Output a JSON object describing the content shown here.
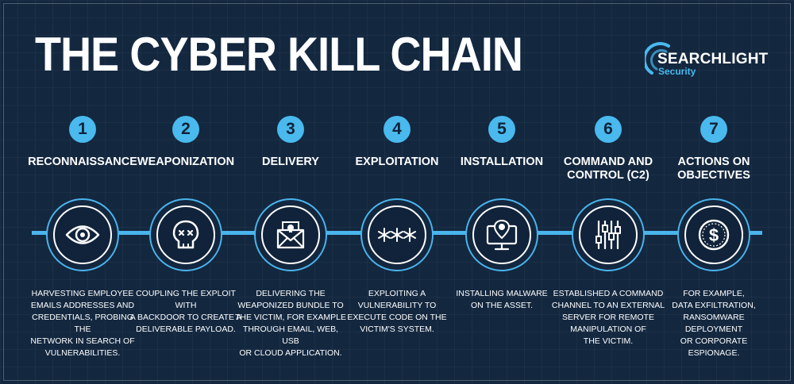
{
  "title": "THE CYBER KILL CHAIN",
  "logo": {
    "name": "SEARCHLIGHT",
    "sub": "Security"
  },
  "colors": {
    "background": "#13273f",
    "accent": "#49b9ee",
    "text": "#ffffff"
  },
  "steps": [
    {
      "number": "1",
      "label": "RECONNAISSANCE",
      "icon": "eye-icon",
      "description": "HARVESTING EMPLOYEE\nEMAILS ADDRESSES AND\nCREDENTIALS, PROBING THE\nNETWORK IN SEARCH OF\nVULNERABILITIES."
    },
    {
      "number": "2",
      "label": "WEAPONIZATION",
      "icon": "skull-icon",
      "description": "COUPLING THE EXPLOIT WITH\nA BACKDOOR TO CREATE A\nDELIVERABLE PAYLOAD."
    },
    {
      "number": "3",
      "label": "DELIVERY",
      "icon": "envelope-skull-icon",
      "description": "DELIVERING THE\nWEAPONIZED BUNDLE TO\nTHE VICTIM, FOR EXAMPLE\nTHROUGH EMAIL, WEB, USB\nOR CLOUD APPLICATION."
    },
    {
      "number": "4",
      "label": "EXPLOITATION",
      "icon": "password-icon",
      "description": "EXPLOITING A\nVULNERABILITY TO\nEXECUTE CODE ON THE\nVICTIM'S SYSTEM."
    },
    {
      "number": "5",
      "label": "INSTALLATION",
      "icon": "monitor-malware-icon",
      "description": "INSTALLING MALWARE\nON THE ASSET."
    },
    {
      "number": "6",
      "label": "COMMAND AND\nCONTROL (C2)",
      "icon": "control-sliders-icon",
      "description": "ESTABLISHED A COMMAND\nCHANNEL TO AN EXTERNAL\nSERVER FOR REMOTE\nMANIPULATION OF\nTHE VICTIM."
    },
    {
      "number": "7",
      "label": "ACTIONS ON\nOBJECTIVES",
      "icon": "dollar-coin-icon",
      "description": "FOR EXAMPLE,\nDATA EXFILTRATION,\nRANSOMWARE DEPLOYMENT\nOR CORPORATE ESPIONAGE."
    }
  ]
}
